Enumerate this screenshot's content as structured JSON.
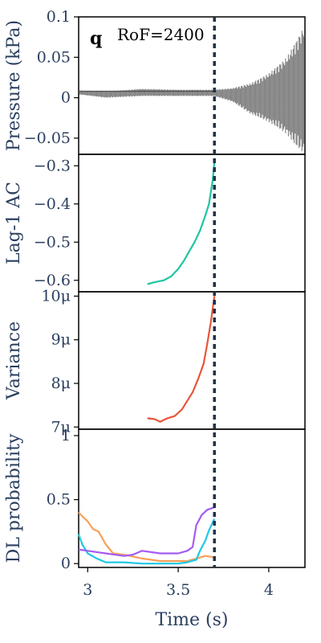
{
  "panel_label": "q",
  "annotation": "RoF=2400",
  "transition_time": 3.7,
  "colors": {
    "pressure": "#808080",
    "lag1": "#1fc5a0",
    "variance": "#e8553a",
    "dl_orange": "#f7a05a",
    "dl_cyan": "#1fc8e6",
    "dl_purple": "#a35bf0",
    "marker_line": "#1f2f4d",
    "text": "#2a3f5f"
  },
  "chart_data": [
    {
      "type": "area",
      "name": "pressure",
      "ylabel": "Pressure (kPa)",
      "ylim": [
        -0.07,
        0.1
      ],
      "yticks": [
        0.1,
        0.05,
        0,
        -0.05
      ],
      "ytick_labels": [
        "0.1",
        "0.05",
        "0",
        "−0.05"
      ],
      "envelope": {
        "x": [
          2.95,
          3.1,
          3.3,
          3.5,
          3.7,
          3.8,
          3.9,
          4.0,
          4.1,
          4.15,
          4.2
        ],
        "upper": [
          0.009,
          0.008,
          0.011,
          0.01,
          0.01,
          0.012,
          0.018,
          0.03,
          0.05,
          0.07,
          0.09
        ],
        "lower": [
          0.004,
          0.0,
          0.002,
          0.002,
          0.002,
          -0.005,
          -0.02,
          -0.03,
          -0.045,
          -0.06,
          -0.07
        ]
      }
    },
    {
      "type": "line",
      "name": "lag1",
      "ylabel": "Lag-1 AC",
      "ylim": [
        -0.63,
        -0.27
      ],
      "yticks": [
        -0.3,
        -0.4,
        -0.5,
        -0.6
      ],
      "ytick_labels": [
        "−0.3",
        "−0.4",
        "−0.5",
        "−0.6"
      ],
      "x": [
        3.33,
        3.37,
        3.42,
        3.46,
        3.5,
        3.53,
        3.56,
        3.59,
        3.62,
        3.65,
        3.67,
        3.69,
        3.7
      ],
      "y": [
        -0.61,
        -0.605,
        -0.6,
        -0.59,
        -0.57,
        -0.55,
        -0.525,
        -0.5,
        -0.47,
        -0.43,
        -0.4,
        -0.34,
        -0.29
      ]
    },
    {
      "type": "line",
      "name": "variance",
      "ylabel": "Variance",
      "ylim": [
        6.95,
        10.1
      ],
      "yticks": [
        10,
        9,
        8,
        7
      ],
      "ytick_labels": [
        "10μ",
        "9μ",
        "8μ",
        "7μ"
      ],
      "x": [
        3.33,
        3.37,
        3.4,
        3.44,
        3.48,
        3.52,
        3.55,
        3.58,
        3.61,
        3.64,
        3.66,
        3.68,
        3.7
      ],
      "y": [
        7.2,
        7.18,
        7.12,
        7.2,
        7.25,
        7.4,
        7.6,
        7.8,
        8.1,
        8.45,
        8.9,
        9.4,
        10.0
      ]
    },
    {
      "type": "line",
      "name": "dl_probability",
      "ylabel": "DL probability",
      "xlabel": "Time (s)",
      "ylim": [
        -0.03,
        1.05
      ],
      "yticks": [
        1,
        0.5,
        0
      ],
      "ytick_labels": [
        "1",
        "0.5",
        "0"
      ],
      "xlim": [
        2.95,
        4.2
      ],
      "xticks": [
        3,
        3.5,
        4
      ],
      "xtick_labels": [
        "3",
        "3.5",
        "4"
      ],
      "series": [
        {
          "color_key": "dl_orange",
          "x": [
            2.95,
            2.97,
            3.0,
            3.03,
            3.06,
            3.1,
            3.14,
            3.2,
            3.3,
            3.4,
            3.5,
            3.55,
            3.6,
            3.65,
            3.7
          ],
          "y": [
            0.4,
            0.37,
            0.33,
            0.27,
            0.25,
            0.15,
            0.08,
            0.07,
            0.04,
            0.02,
            0.02,
            0.02,
            0.04,
            0.06,
            0.05
          ]
        },
        {
          "color_key": "dl_cyan",
          "x": [
            2.95,
            2.97,
            3.0,
            3.05,
            3.1,
            3.2,
            3.3,
            3.4,
            3.5,
            3.55,
            3.6,
            3.62,
            3.65,
            3.67,
            3.7
          ],
          "y": [
            0.23,
            0.15,
            0.08,
            0.04,
            0.01,
            0.01,
            0.0,
            0.0,
            0.0,
            0.01,
            0.03,
            0.1,
            0.18,
            0.26,
            0.35
          ]
        },
        {
          "color_key": "dl_purple",
          "x": [
            2.95,
            3.0,
            3.1,
            3.2,
            3.25,
            3.3,
            3.4,
            3.5,
            3.55,
            3.58,
            3.6,
            3.63,
            3.66,
            3.7
          ],
          "y": [
            0.11,
            0.1,
            0.08,
            0.06,
            0.07,
            0.1,
            0.08,
            0.08,
            0.1,
            0.13,
            0.3,
            0.38,
            0.42,
            0.44
          ]
        }
      ]
    }
  ]
}
